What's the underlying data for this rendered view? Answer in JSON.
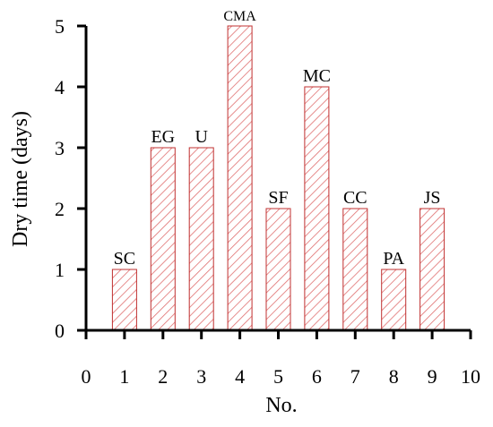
{
  "chart_data": {
    "type": "bar",
    "xlabel": "No.",
    "ylabel": "Dry time (days)",
    "x": [
      1,
      2,
      3,
      4,
      5,
      6,
      7,
      8,
      9
    ],
    "values": [
      1,
      3,
      3,
      5,
      2,
      4,
      2,
      1,
      2
    ],
    "bar_labels": [
      "SC",
      "EG",
      "U",
      "CMA",
      "SF",
      "MC",
      "CC",
      "PA",
      "JS"
    ],
    "xlim": [
      0,
      10
    ],
    "ylim": [
      0,
      5
    ],
    "x_ticks": [
      0,
      1,
      2,
      3,
      4,
      5,
      6,
      7,
      8,
      9,
      10
    ],
    "y_ticks": [
      0,
      1,
      2,
      3,
      4,
      5
    ],
    "grid": false,
    "legend": "none",
    "bar_fill": "hatched",
    "colors": {
      "hatch": "#e07070",
      "bar_edge": "#c03030",
      "axis": "#000000"
    }
  }
}
